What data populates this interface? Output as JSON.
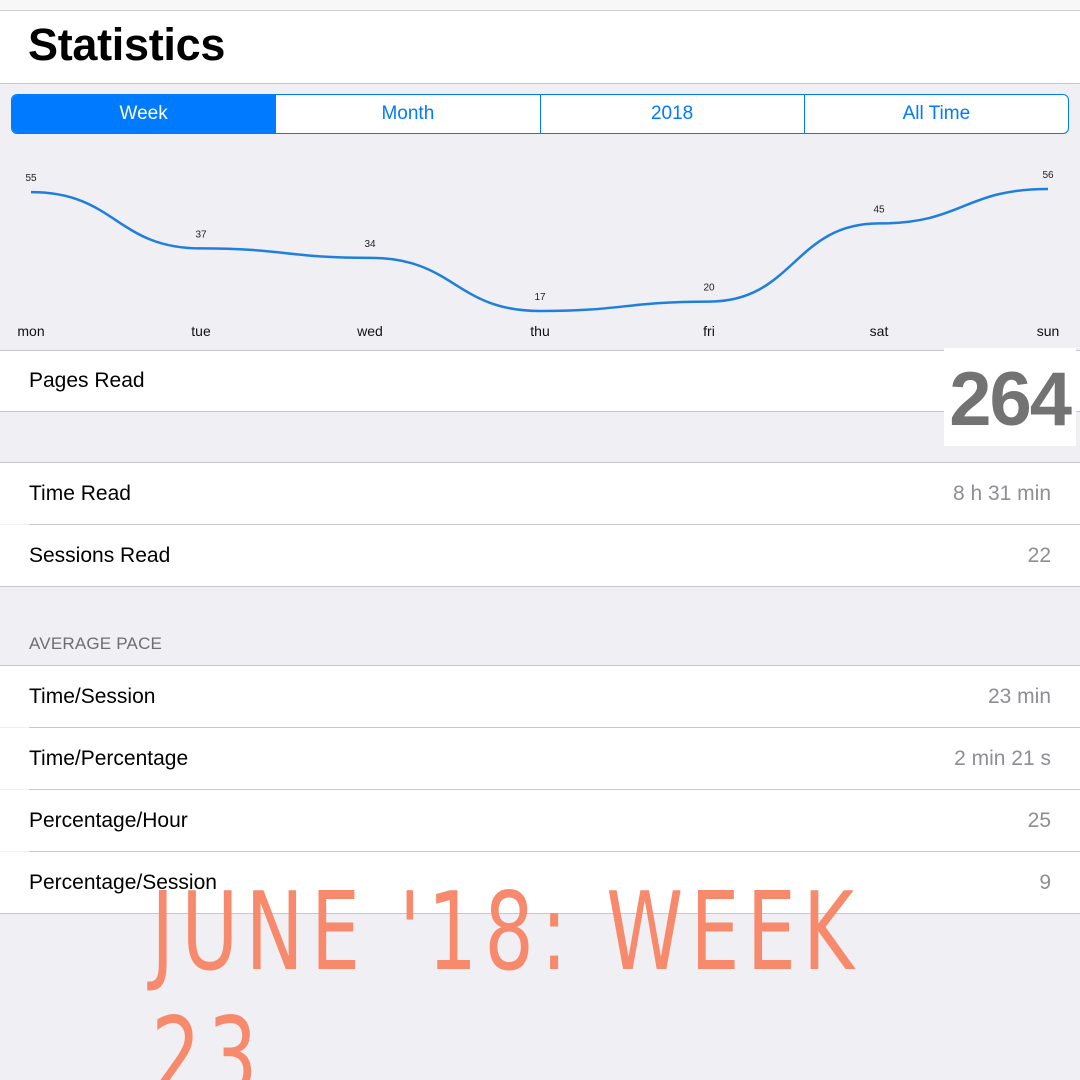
{
  "header": {
    "title": "Statistics"
  },
  "segments": [
    {
      "label": "Week",
      "active": true
    },
    {
      "label": "Month",
      "active": false
    },
    {
      "label": "2018",
      "active": false
    },
    {
      "label": "All Time",
      "active": false
    }
  ],
  "chart_data": {
    "type": "line",
    "categories": [
      "mon",
      "tue",
      "wed",
      "thu",
      "fri",
      "sat",
      "sun"
    ],
    "values": [
      55,
      37,
      34,
      17,
      20,
      45,
      56
    ],
    "title": "",
    "xlabel": "",
    "ylabel": "",
    "grid": false,
    "smooth": true,
    "color": "#1f7fdc"
  },
  "stats": {
    "pages_read": {
      "label": "Pages Read",
      "value": "264"
    },
    "time_read": {
      "label": "Time Read",
      "value": "8 h 31 min"
    },
    "sessions_read": {
      "label": "Sessions Read",
      "value": "22"
    }
  },
  "average_pace": {
    "header": "AVERAGE PACE",
    "rows": [
      {
        "label": "Time/Session",
        "value": "23 min"
      },
      {
        "label": "Time/Percentage",
        "value": "2 min 21 s"
      },
      {
        "label": "Percentage/Hour",
        "value": "25"
      },
      {
        "label": "Percentage/Session",
        "value": "9"
      }
    ]
  },
  "caption": "JUNE '18: WEEK 23",
  "colors": {
    "accent": "#007aff",
    "line": "#1f7fdc",
    "caption": "#f78a6c",
    "background": "#efeff4"
  }
}
